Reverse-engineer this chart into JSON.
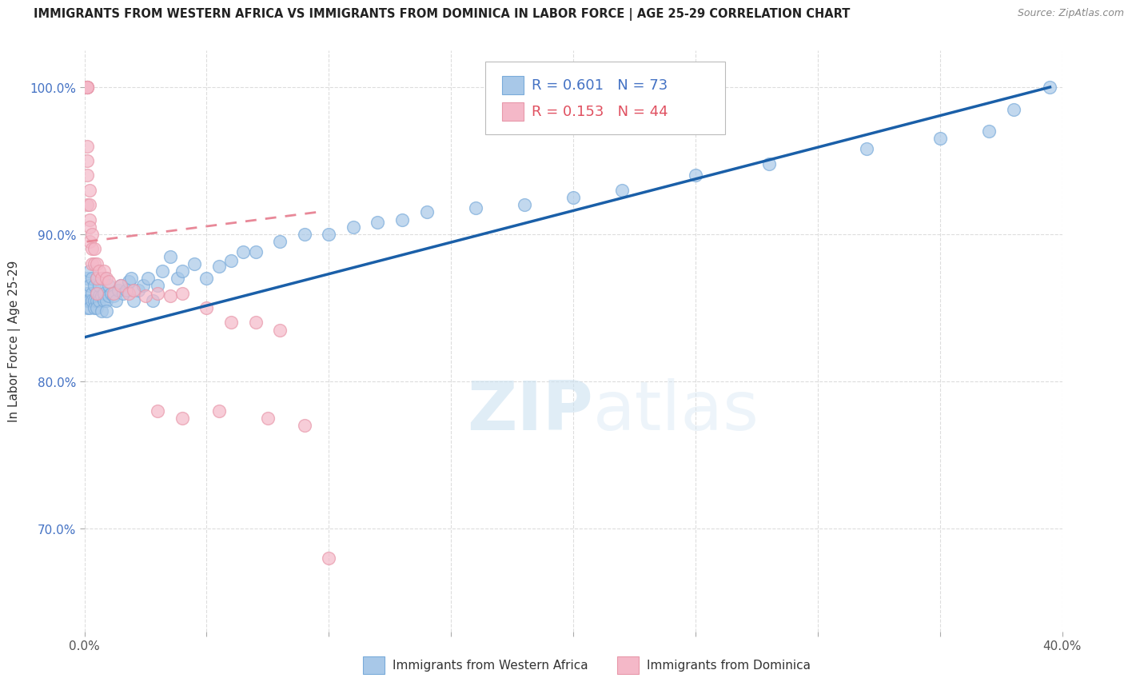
{
  "title": "IMMIGRANTS FROM WESTERN AFRICA VS IMMIGRANTS FROM DOMINICA IN LABOR FORCE | AGE 25-29 CORRELATION CHART",
  "source": "Source: ZipAtlas.com",
  "ylabel": "In Labor Force | Age 25-29",
  "legend_label_blue": "Immigrants from Western Africa",
  "legend_label_pink": "Immigrants from Dominica",
  "r_blue": 0.601,
  "n_blue": 73,
  "r_pink": 0.153,
  "n_pink": 44,
  "watermark_zip": "ZIP",
  "watermark_atlas": "atlas",
  "xlim": [
    0.0,
    0.4
  ],
  "ylim": [
    0.63,
    1.025
  ],
  "xticks": [
    0.0,
    0.05,
    0.1,
    0.15,
    0.2,
    0.25,
    0.3,
    0.35,
    0.4
  ],
  "ytick_vals": [
    0.7,
    0.8,
    0.9,
    1.0
  ],
  "ytick_labels": [
    "70.0%",
    "80.0%",
    "90.0%",
    "100.0%"
  ],
  "color_blue": "#a8c8e8",
  "color_pink": "#f4b8c8",
  "line_blue": "#1a5fa8",
  "line_pink": "#e88898",
  "background": "#ffffff",
  "grid_color": "#dddddd",
  "blue_x": [
    0.001,
    0.001,
    0.001,
    0.001,
    0.002,
    0.002,
    0.002,
    0.002,
    0.003,
    0.003,
    0.003,
    0.004,
    0.004,
    0.004,
    0.005,
    0.005,
    0.005,
    0.005,
    0.006,
    0.006,
    0.006,
    0.007,
    0.007,
    0.008,
    0.008,
    0.008,
    0.009,
    0.009,
    0.01,
    0.01,
    0.011,
    0.012,
    0.013,
    0.014,
    0.015,
    0.016,
    0.017,
    0.018,
    0.019,
    0.02,
    0.022,
    0.024,
    0.026,
    0.028,
    0.03,
    0.032,
    0.035,
    0.038,
    0.04,
    0.045,
    0.05,
    0.055,
    0.06,
    0.065,
    0.07,
    0.08,
    0.09,
    0.1,
    0.11,
    0.12,
    0.13,
    0.14,
    0.16,
    0.18,
    0.2,
    0.22,
    0.25,
    0.28,
    0.32,
    0.35,
    0.37,
    0.38,
    0.395
  ],
  "blue_y": [
    0.86,
    0.87,
    0.85,
    0.855,
    0.855,
    0.865,
    0.875,
    0.85,
    0.86,
    0.855,
    0.87,
    0.855,
    0.85,
    0.865,
    0.86,
    0.855,
    0.87,
    0.85,
    0.858,
    0.865,
    0.855,
    0.858,
    0.848,
    0.855,
    0.86,
    0.87,
    0.855,
    0.848,
    0.858,
    0.865,
    0.86,
    0.858,
    0.855,
    0.862,
    0.865,
    0.86,
    0.862,
    0.868,
    0.87,
    0.855,
    0.862,
    0.865,
    0.87,
    0.855,
    0.865,
    0.875,
    0.885,
    0.87,
    0.875,
    0.88,
    0.87,
    0.878,
    0.882,
    0.888,
    0.888,
    0.895,
    0.9,
    0.9,
    0.905,
    0.908,
    0.91,
    0.915,
    0.918,
    0.92,
    0.925,
    0.93,
    0.94,
    0.948,
    0.958,
    0.965,
    0.97,
    0.985,
    1.0
  ],
  "pink_x": [
    0.001,
    0.001,
    0.001,
    0.001,
    0.001,
    0.001,
    0.001,
    0.001,
    0.002,
    0.002,
    0.002,
    0.002,
    0.002,
    0.003,
    0.003,
    0.003,
    0.004,
    0.004,
    0.005,
    0.005,
    0.005,
    0.006,
    0.007,
    0.008,
    0.009,
    0.01,
    0.012,
    0.015,
    0.018,
    0.02,
    0.025,
    0.03,
    0.035,
    0.04,
    0.05,
    0.06,
    0.07,
    0.08,
    0.03,
    0.04,
    0.055,
    0.075,
    0.09,
    0.1
  ],
  "pink_y": [
    1.0,
    1.0,
    1.0,
    1.0,
    0.96,
    0.95,
    0.94,
    0.92,
    0.93,
    0.92,
    0.91,
    0.905,
    0.895,
    0.9,
    0.89,
    0.88,
    0.89,
    0.88,
    0.88,
    0.87,
    0.86,
    0.875,
    0.87,
    0.875,
    0.87,
    0.868,
    0.86,
    0.865,
    0.86,
    0.862,
    0.858,
    0.86,
    0.858,
    0.86,
    0.85,
    0.84,
    0.84,
    0.835,
    0.78,
    0.775,
    0.78,
    0.775,
    0.77,
    0.68
  ],
  "blue_line_x": [
    0.0,
    0.395
  ],
  "blue_line_y": [
    0.83,
    1.0
  ],
  "pink_line_x": [
    0.001,
    0.095
  ],
  "pink_line_y": [
    0.895,
    0.915
  ]
}
